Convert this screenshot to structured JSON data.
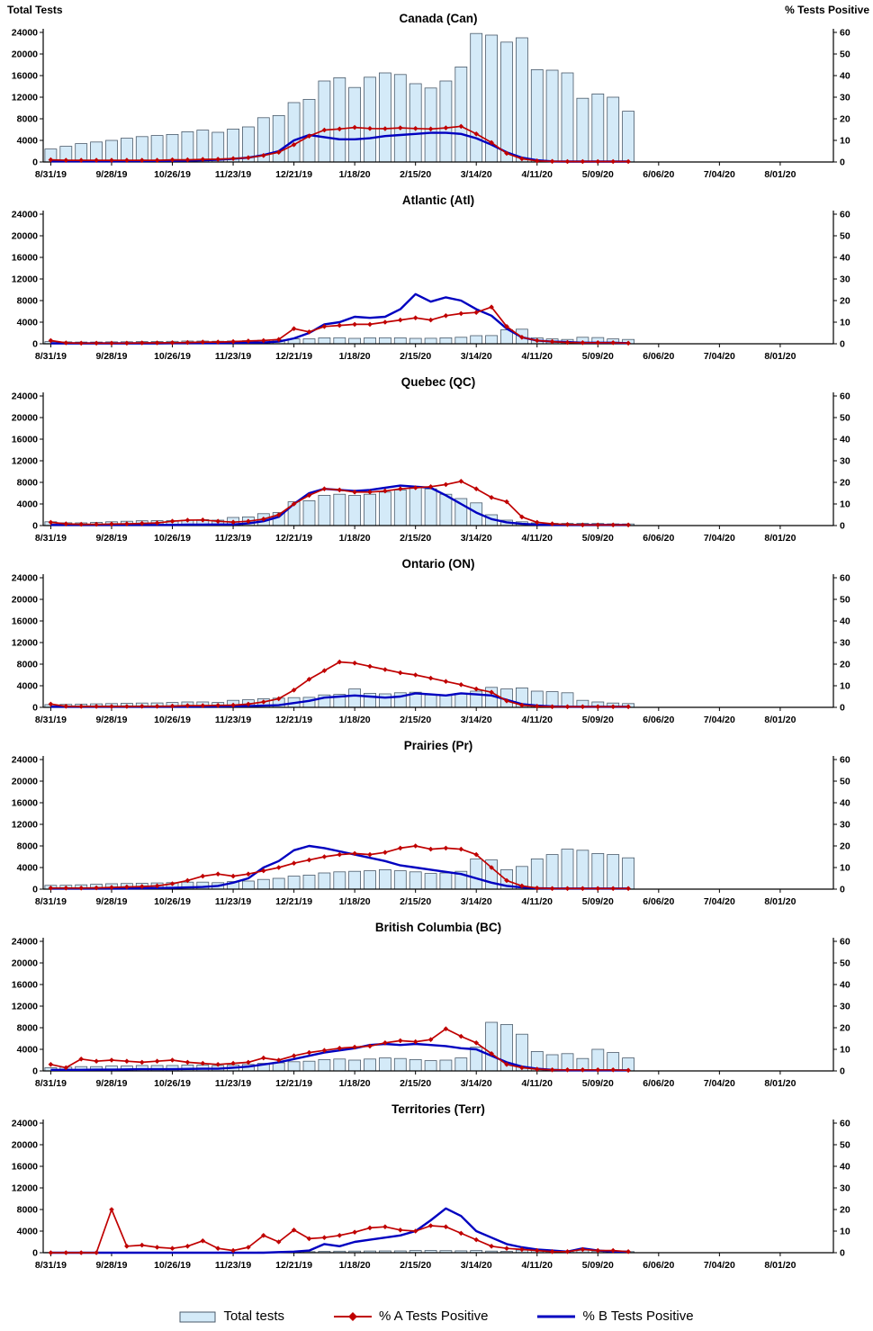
{
  "header": {
    "left_axis_title": "Total Tests",
    "right_axis_title": "% Tests Positive"
  },
  "legend": {
    "total_tests": "Total tests",
    "a_positive": "% A Tests Positive",
    "b_positive": "% B Tests Positive"
  },
  "colors": {
    "bar_fill": "#d4eaf8",
    "bar_stroke": "#4a5a6a",
    "a_line": "#c00000",
    "b_line": "#0000c0",
    "axis": "#000000"
  },
  "chart_data": {
    "type": "bar+line",
    "x_tick_labels": [
      "8/31/19",
      "9/28/19",
      "10/26/19",
      "11/23/19",
      "12/21/19",
      "1/18/20",
      "2/15/20",
      "3/14/20",
      "4/11/20",
      "5/09/20",
      "6/06/20",
      "7/04/20",
      "8/01/20"
    ],
    "weeks_per_tick": 4,
    "n_week_slots": 52,
    "left_axis": {
      "label": "Total Tests",
      "min": 0,
      "max": 24000,
      "step": 4000
    },
    "right_axis": {
      "label": "% Tests Positive",
      "min": 0,
      "max": 60,
      "step": 10
    },
    "series_names": [
      "Total tests",
      "% A Tests Positive",
      "% B Tests Positive"
    ],
    "panels": [
      {
        "id": "canada",
        "title": "Canada (Can)",
        "total_tests": [
          2400,
          2900,
          3400,
          3700,
          4000,
          4400,
          4700,
          4900,
          5100,
          5600,
          5900,
          5500,
          6100,
          6500,
          8200,
          8600,
          11000,
          11600,
          15000,
          15600,
          13800,
          15700,
          16500,
          16200,
          14500,
          13700,
          15000,
          17600,
          23800,
          23500,
          22200,
          23000,
          17100,
          17000,
          16500,
          11800,
          12600,
          12000,
          9400
        ],
        "pct_a_positive": [
          1,
          0.8,
          0.8,
          0.8,
          0.8,
          0.8,
          0.8,
          0.8,
          1,
          1,
          1.2,
          1.3,
          1.6,
          2,
          3,
          4.5,
          8,
          12,
          14.8,
          15.3,
          16,
          15.5,
          15.4,
          15.8,
          15.5,
          15.3,
          15.8,
          16.5,
          13,
          9,
          4,
          1.5,
          0.5,
          0.3,
          0.2,
          0.2,
          0.2,
          0.2,
          0.2
        ],
        "pct_b_positive": [
          0.3,
          0.3,
          0.3,
          0.3,
          0.3,
          0.4,
          0.4,
          0.5,
          0.5,
          0.6,
          0.8,
          1,
          1.5,
          2,
          3.2,
          5,
          10,
          12.5,
          11.5,
          10.5,
          10.5,
          11,
          12,
          12.5,
          13,
          13.5,
          13.5,
          13,
          11,
          8,
          4.5,
          2,
          0.8,
          0.3,
          0.2,
          0.2,
          0.2,
          0.2,
          0.2
        ]
      },
      {
        "id": "atlantic",
        "title": "Atlantic (Atl)",
        "total_tests": [
          400,
          350,
          320,
          320,
          350,
          360,
          400,
          420,
          450,
          500,
          500,
          460,
          520,
          560,
          650,
          700,
          900,
          920,
          1100,
          1120,
          1000,
          1100,
          1120,
          1100,
          1000,
          1020,
          1100,
          1200,
          1500,
          1520,
          2600,
          2700,
          1100,
          900,
          800,
          1200,
          1150,
          900,
          800
        ],
        "pct_a_positive": [
          1.5,
          0.4,
          0.3,
          0.3,
          0.3,
          0.3,
          0.4,
          0.4,
          0.5,
          0.6,
          0.8,
          0.8,
          1,
          1.3,
          1.5,
          2,
          7,
          5.5,
          8,
          8.5,
          9,
          9,
          10,
          11,
          12,
          11,
          13,
          14,
          14.5,
          17,
          8,
          3,
          1.5,
          1,
          0.6,
          0.5,
          0.5,
          0.5,
          0.3
        ],
        "pct_b_positive": [
          0.2,
          0.2,
          0.2,
          0.2,
          0.2,
          0.2,
          0.2,
          0.2,
          0.3,
          0.3,
          0.3,
          0.3,
          0.4,
          0.5,
          0.6,
          1,
          2.5,
          5,
          9,
          10,
          12.5,
          12,
          12.5,
          16,
          23,
          19.5,
          21.5,
          20,
          16,
          13,
          7,
          3,
          1.5,
          1,
          0.8,
          0.5,
          0.5,
          0.5,
          0.3
        ]
      },
      {
        "id": "quebec",
        "title": "Quebec (QC)",
        "total_tests": [
          700,
          520,
          500,
          600,
          700,
          800,
          880,
          900,
          920,
          1000,
          1100,
          1000,
          1500,
          1600,
          2200,
          2400,
          4400,
          4600,
          5600,
          5800,
          5600,
          5800,
          6200,
          6600,
          7000,
          6800,
          5800,
          5000,
          4200,
          2000,
          1000,
          700,
          500,
          420,
          400,
          400,
          380,
          320,
          300
        ],
        "pct_a_positive": [
          1.5,
          0.8,
          0.6,
          0.6,
          0.7,
          0.8,
          1,
          1.2,
          2,
          2.5,
          2.6,
          2,
          1.6,
          2,
          3,
          5,
          10,
          14,
          17,
          16.5,
          15.5,
          15.5,
          16,
          17,
          17.5,
          18,
          19,
          20.5,
          17,
          13,
          11,
          4,
          1.5,
          0.8,
          0.5,
          0.3,
          0.3,
          0.3,
          0.3
        ],
        "pct_b_positive": [
          0.3,
          0.3,
          0.3,
          0.3,
          0.3,
          0.3,
          0.3,
          0.3,
          0.3,
          0.4,
          0.4,
          0.5,
          0.5,
          1,
          2,
          4,
          10,
          15,
          17,
          16.5,
          16,
          16.5,
          17.5,
          18.5,
          18,
          17.5,
          14,
          10,
          6,
          3,
          1.5,
          0.8,
          0.4,
          0.3,
          0.3,
          0.3,
          0.3,
          0.3,
          0.3
        ]
      },
      {
        "id": "ontario",
        "title": "Ontario (ON)",
        "total_tests": [
          500,
          550,
          600,
          650,
          700,
          750,
          800,
          820,
          900,
          1000,
          1000,
          900,
          1300,
          1400,
          1600,
          1700,
          1800,
          1850,
          2300,
          2400,
          3400,
          2600,
          2500,
          2700,
          2800,
          2300,
          2200,
          2600,
          3000,
          3700,
          3400,
          3600,
          3000,
          2900,
          2700,
          1300,
          1000,
          800,
          700
        ],
        "pct_a_positive": [
          1.5,
          0.5,
          0.4,
          0.4,
          0.4,
          0.4,
          0.5,
          0.5,
          0.6,
          0.8,
          0.8,
          0.9,
          1,
          1.5,
          2.5,
          4,
          8,
          13,
          17,
          21,
          20.5,
          19,
          17.5,
          16,
          15,
          13.5,
          12,
          10.5,
          8.5,
          7,
          3,
          1,
          0.5,
          0.3,
          0.3,
          0.3,
          0.3,
          0.3,
          0.3
        ],
        "pct_b_positive": [
          0.3,
          0.3,
          0.3,
          0.3,
          0.3,
          0.3,
          0.3,
          0.3,
          0.3,
          0.3,
          0.4,
          0.4,
          0.5,
          0.6,
          0.8,
          1,
          2,
          3,
          4.5,
          5,
          5.5,
          5,
          4.5,
          5,
          6.5,
          6,
          5.5,
          6.5,
          6,
          5.5,
          3.5,
          1.5,
          0.8,
          0.4,
          0.3,
          0.3,
          0.3,
          0.3,
          0.3
        ]
      },
      {
        "id": "prairies",
        "title": "Prairies (Pr)",
        "total_tests": [
          700,
          720,
          800,
          900,
          1000,
          1050,
          1100,
          1150,
          1200,
          1300,
          1300,
          1200,
          1400,
          1500,
          1800,
          2000,
          2400,
          2600,
          3000,
          3200,
          3300,
          3400,
          3600,
          3400,
          3200,
          2900,
          3000,
          3300,
          5600,
          5400,
          3600,
          4200,
          5600,
          6400,
          7400,
          7200,
          6600,
          6400,
          5800
        ],
        "pct_a_positive": [
          0.5,
          0.5,
          0.5,
          0.6,
          0.8,
          1,
          1.2,
          1.5,
          2.5,
          4,
          6,
          7,
          6,
          7,
          8.5,
          10,
          12,
          13.5,
          15,
          16,
          16.5,
          16,
          17,
          19,
          20,
          18.5,
          19,
          18.5,
          16,
          10,
          4,
          1.5,
          0.5,
          0.3,
          0.3,
          0.3,
          0.3,
          0.3,
          0.3
        ],
        "pct_b_positive": [
          0.3,
          0.3,
          0.3,
          0.3,
          0.3,
          0.3,
          0.4,
          0.5,
          0.6,
          0.8,
          1,
          1.5,
          3,
          5,
          10,
          13,
          18,
          20,
          19,
          17.5,
          16,
          14.5,
          13,
          11,
          10,
          9,
          8,
          7,
          5,
          3,
          1.5,
          0.8,
          0.4,
          0.3,
          0.3,
          0.3,
          0.3,
          0.3,
          0.3
        ]
      },
      {
        "id": "bc",
        "title": "British Columbia (BC)",
        "total_tests": [
          600,
          700,
          800,
          800,
          900,
          900,
          1000,
          1000,
          1000,
          1100,
          1100,
          1000,
          1100,
          1200,
          1400,
          1500,
          1700,
          1800,
          2100,
          2200,
          2000,
          2200,
          2400,
          2300,
          2100,
          1900,
          2000,
          2400,
          4400,
          9000,
          8600,
          6800,
          3600,
          3000,
          3200,
          2300,
          4000,
          3400,
          2400
        ],
        "pct_a_positive": [
          3,
          1.5,
          5.5,
          4.5,
          5,
          4.5,
          4,
          4.5,
          5,
          4,
          3.5,
          3,
          3.5,
          4,
          6,
          5,
          7,
          8.5,
          9.5,
          10.5,
          11,
          11.5,
          13,
          14,
          13.5,
          14.5,
          19.5,
          16,
          13,
          8,
          3,
          1.5,
          0.8,
          0.5,
          0.5,
          0.5,
          0.5,
          0.5,
          0.3
        ],
        "pct_b_positive": [
          0.5,
          0.5,
          0.5,
          0.6,
          0.6,
          0.7,
          0.8,
          0.8,
          0.8,
          0.9,
          1,
          1,
          1.5,
          2,
          3,
          4,
          5.5,
          7,
          8.5,
          9.5,
          10.5,
          12,
          12.5,
          12,
          12.5,
          12,
          11.5,
          10.5,
          10,
          7,
          4,
          2,
          1,
          0.5,
          0.3,
          0.3,
          0.3,
          0.3,
          0.3
        ]
      },
      {
        "id": "territories",
        "title": "Territories (Terr)",
        "total_tests": [
          50,
          60,
          50,
          60,
          80,
          60,
          60,
          70,
          80,
          80,
          70,
          60,
          80,
          90,
          120,
          130,
          200,
          200,
          260,
          280,
          300,
          320,
          340,
          330,
          400,
          420,
          380,
          350,
          400,
          300,
          250,
          500,
          600,
          400,
          300,
          500,
          300,
          250,
          200
        ],
        "pct_a_positive": [
          0,
          0,
          0,
          0,
          20,
          3,
          3.5,
          2.5,
          2,
          3,
          5.5,
          2,
          1,
          2.5,
          8,
          5,
          10.5,
          6.5,
          7,
          8,
          9.5,
          11.5,
          12,
          10.5,
          10,
          12.5,
          12,
          9,
          6,
          3,
          2,
          1.5,
          1,
          0.5,
          0.5,
          1.5,
          1,
          1,
          0.5
        ],
        "pct_b_positive": [
          0,
          0,
          0,
          0,
          0,
          0,
          0,
          0,
          0,
          0,
          0,
          0,
          0,
          0,
          0,
          0.3,
          0.5,
          1,
          4,
          3,
          5,
          6,
          7,
          8,
          10,
          15,
          20.5,
          17,
          10,
          7,
          4,
          2.5,
          1.5,
          1,
          0.5,
          2,
          1,
          0.5,
          0.5
        ]
      }
    ]
  }
}
